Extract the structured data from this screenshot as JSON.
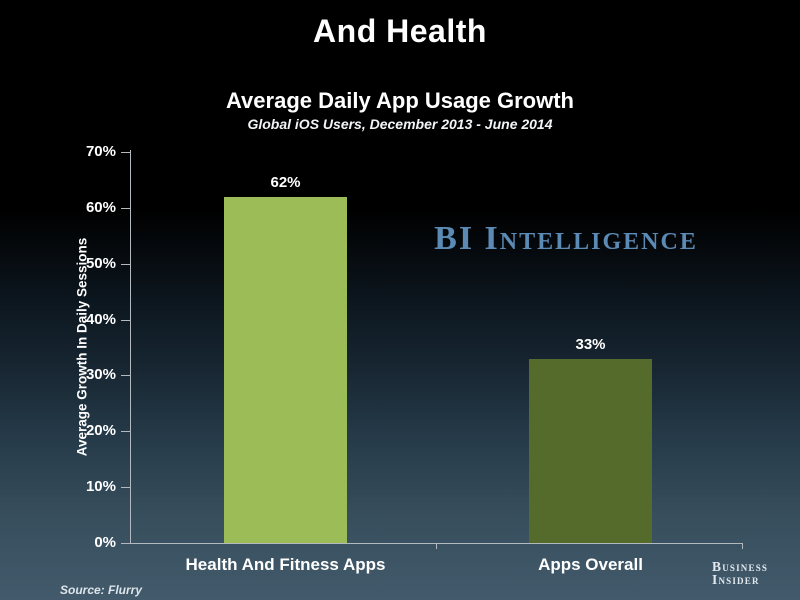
{
  "slide": {
    "title": "And Health",
    "source_note": "Source: Flurry",
    "watermark_text": "BI Intelligence",
    "logo_line1": "Business",
    "logo_line2": "Insider"
  },
  "chart_data": {
    "type": "bar",
    "title": "Average Daily App Usage Growth",
    "subtitle": "Global iOS Users, December 2013 - June 2014",
    "ylabel": "Average Growth In Daily Sessions",
    "xlabel": "",
    "categories": [
      "Health And Fitness Apps",
      "Apps Overall"
    ],
    "values": [
      62,
      33
    ],
    "value_labels": [
      "62%",
      "33%"
    ],
    "bar_colors": [
      "#9bbc57",
      "#556b2b"
    ],
    "ylim": [
      0,
      70
    ],
    "ytick_interval": 10,
    "ytick_labels": [
      "0%",
      "10%",
      "20%",
      "30%",
      "40%",
      "50%",
      "60%",
      "70%"
    ],
    "grid": false,
    "legend": false
  },
  "colors": {
    "background_top": "#000000",
    "background_bottom": "#42596a",
    "text": "#ffffff",
    "watermark_blue": "#5b8ab5",
    "axis": "#b3babf",
    "bar_health_fitness": "#9bbc57",
    "bar_apps_overall": "#556b2b"
  }
}
